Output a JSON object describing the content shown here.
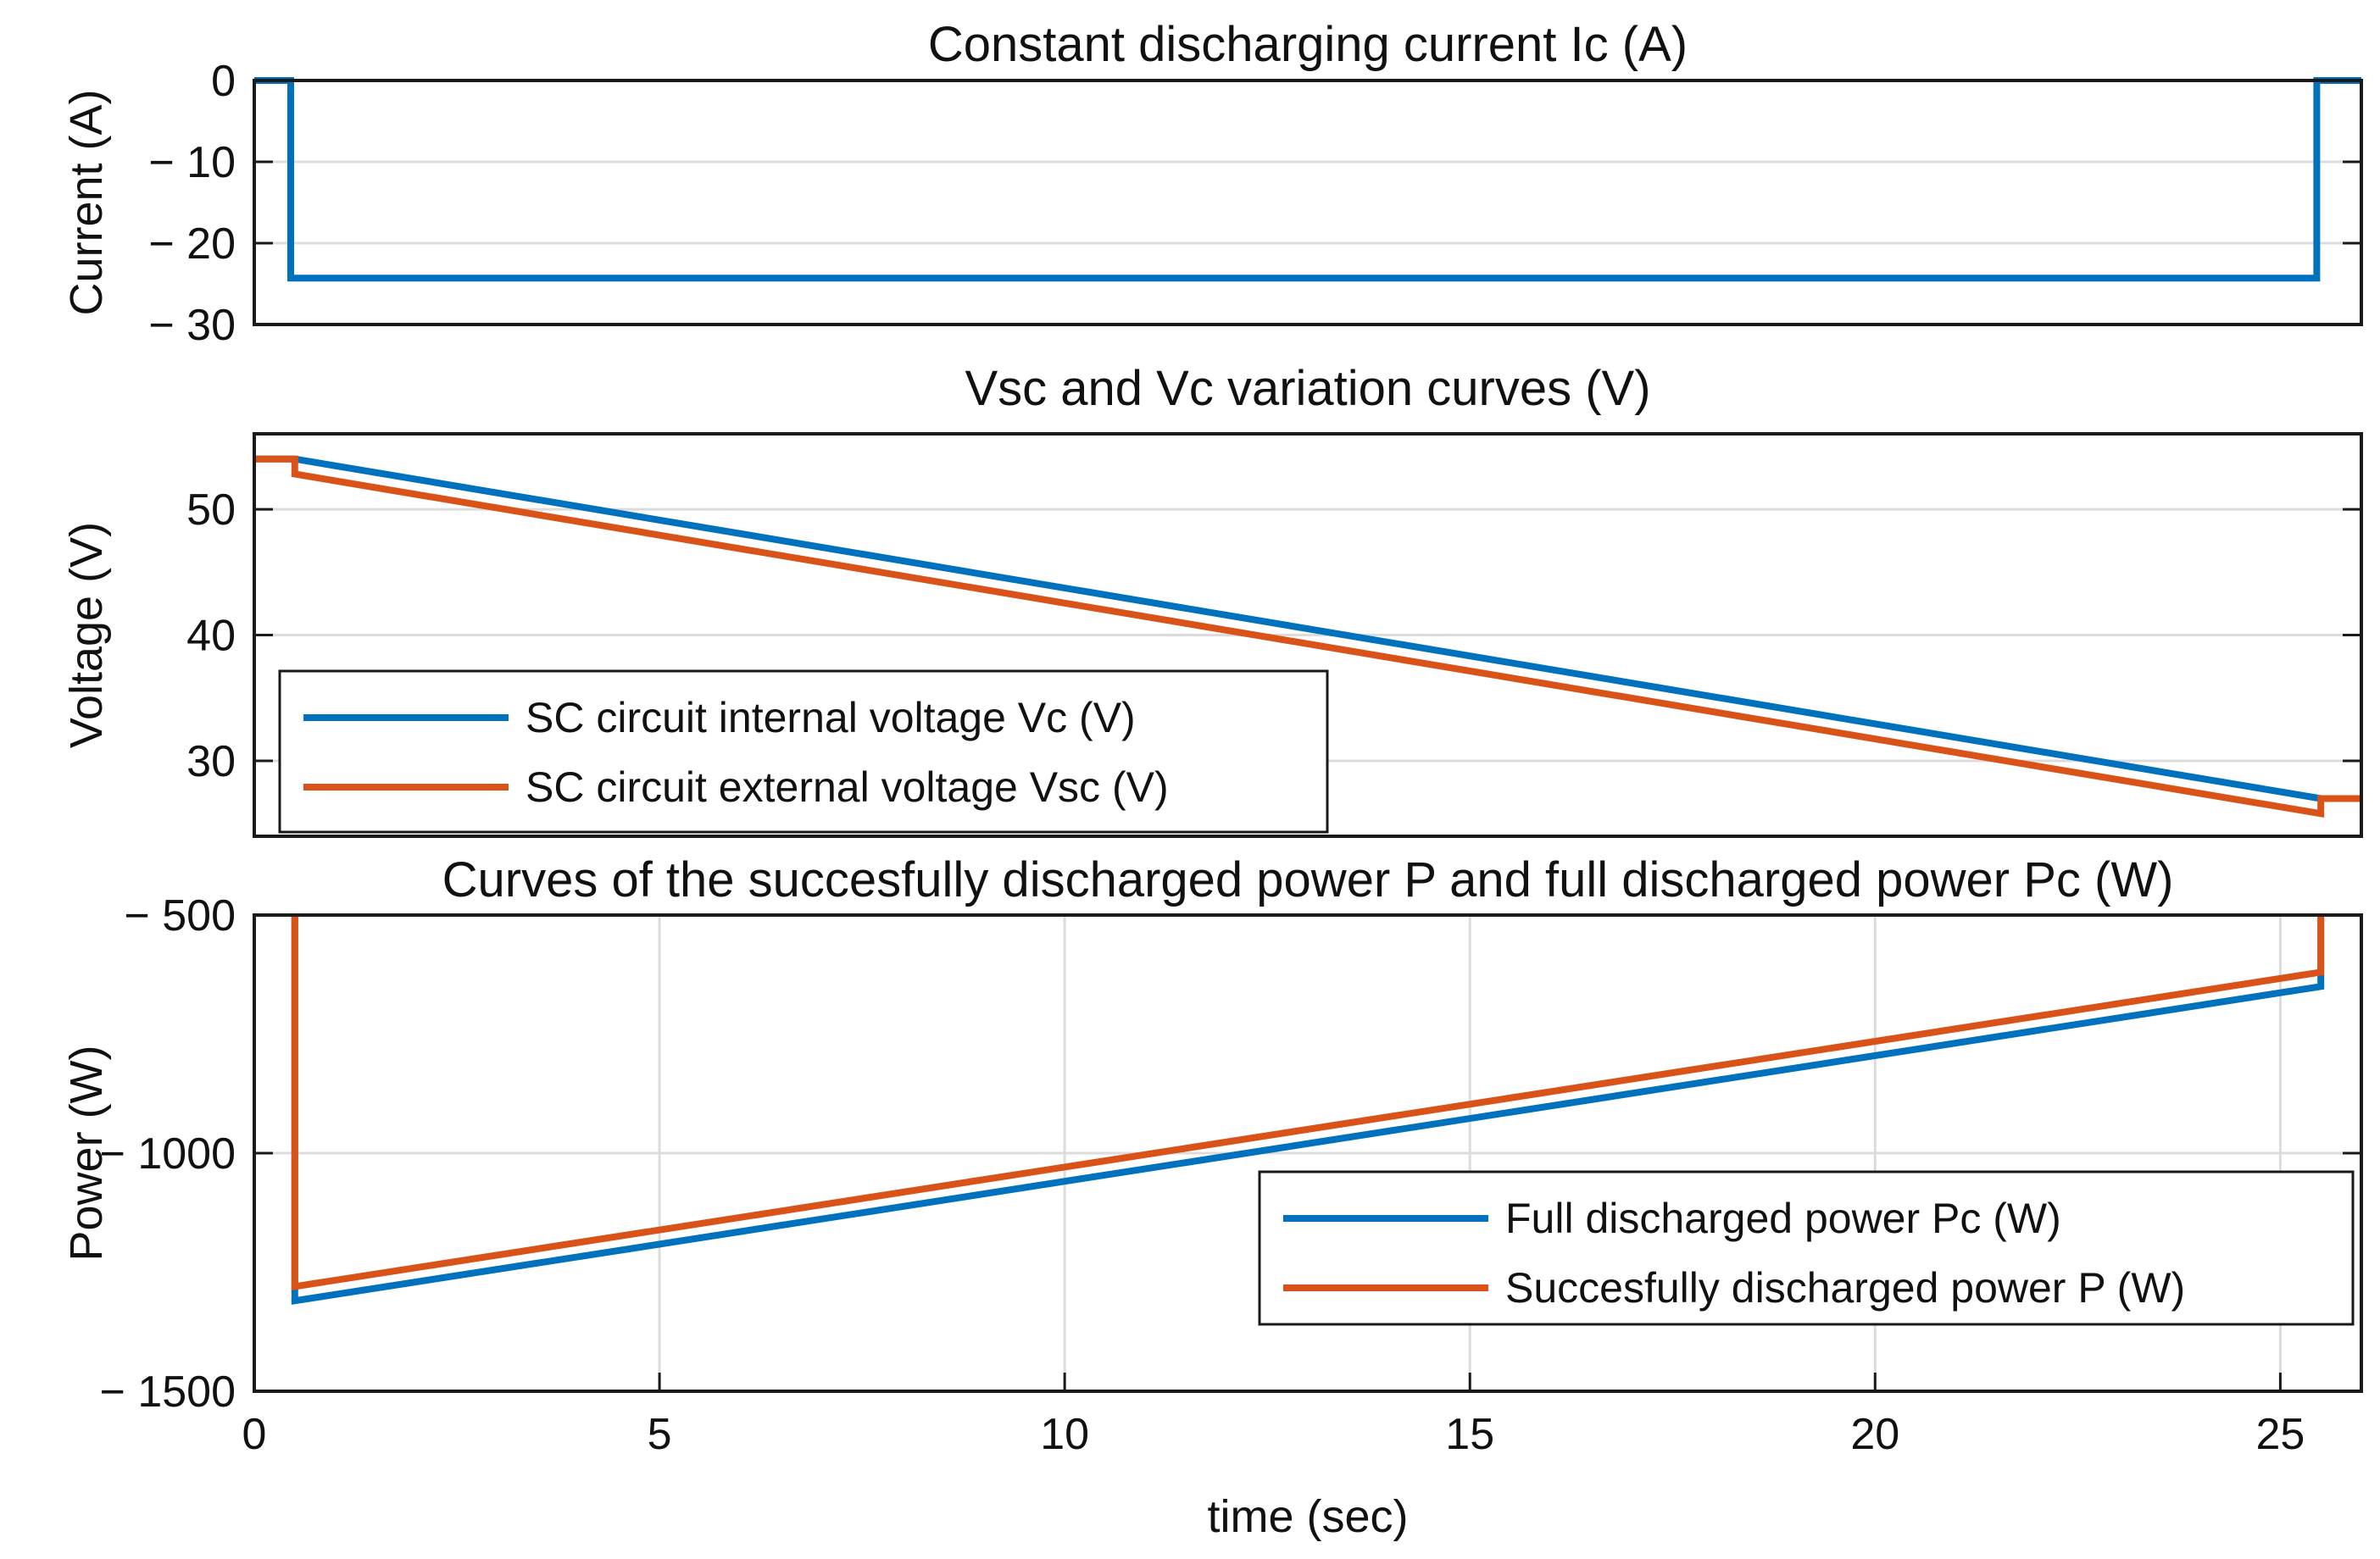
{
  "chart_data": [
    {
      "type": "line",
      "title": "Constant discharging current Ic (A)",
      "xlabel": "",
      "ylabel": "Current (A)",
      "xlim": [
        0,
        26
      ],
      "ylim": [
        -30,
        0
      ],
      "yticks": [
        0,
        -10,
        -20,
        -30
      ],
      "ytick_labels": [
        "0",
        "− 10",
        "− 20",
        "− 30"
      ],
      "series": [
        {
          "name": "Ic",
          "color": "#0072BD",
          "x": [
            0,
            0.45,
            0.45,
            25.45,
            25.45,
            26
          ],
          "y": [
            0,
            0,
            -24.3,
            -24.3,
            0,
            0
          ]
        }
      ]
    },
    {
      "type": "line",
      "title": "Vsc and Vc variation curves (V)",
      "xlabel": "",
      "ylabel": "Voltage (V)",
      "xlim": [
        0,
        26
      ],
      "ylim": [
        24,
        56
      ],
      "yticks": [
        30,
        40,
        50
      ],
      "ytick_labels": [
        "30",
        "40",
        "50"
      ],
      "legend_position": "bottom-left",
      "series": [
        {
          "name": "SC circuit internal voltage Vc (V)",
          "color": "#0072BD",
          "x": [
            0,
            0.5,
            25.5
          ],
          "y": [
            54,
            54,
            27
          ]
        },
        {
          "name": "SC circuit external voltage Vsc (V)",
          "color": "#D95319",
          "x": [
            0,
            0.5,
            0.5,
            25.5,
            25.5,
            26
          ],
          "y": [
            54,
            54,
            52.8,
            25.8,
            27,
            27
          ]
        }
      ]
    },
    {
      "type": "line",
      "title": "Curves of the succesfully discharged power P and full discharged power Pc (W)",
      "xlabel": "time (sec)",
      "ylabel": "Power (W)",
      "xlim": [
        0,
        26
      ],
      "ylim": [
        -1500,
        -500
      ],
      "xticks": [
        0,
        5,
        10,
        15,
        20,
        25
      ],
      "xtick_labels": [
        "0",
        "5",
        "10",
        "15",
        "20",
        "25"
      ],
      "yticks": [
        -500,
        -1000,
        -1500
      ],
      "ytick_labels": [
        "− 500",
        "− 1000",
        "− 1500"
      ],
      "legend_position": "bottom-right",
      "series": [
        {
          "name": "Full discharged power Pc (W)",
          "color": "#0072BD",
          "x": [
            0.5,
            0.5,
            0.5,
            25.5,
            25.5
          ],
          "y": [
            -500,
            -1100,
            -1310,
            -650,
            -500
          ]
        },
        {
          "name": "Succesfully discharged power P (W)",
          "color": "#D95319",
          "x": [
            0.5,
            0.5,
            25.5,
            25.5
          ],
          "y": [
            -500,
            -1280,
            -620,
            -500
          ]
        }
      ]
    }
  ]
}
